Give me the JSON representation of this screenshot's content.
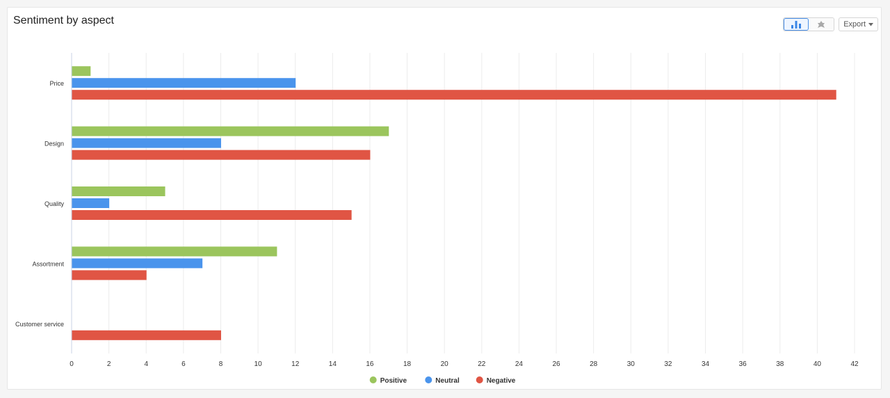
{
  "widget": {
    "title": "Sentiment by aspect",
    "export_label": "Export",
    "chart_type_options": [
      {
        "icon": "bar-chart-icon",
        "active": true
      },
      {
        "icon": "pie-chart-icon",
        "active": false
      }
    ]
  },
  "chart_data": {
    "type": "bar",
    "orientation": "horizontal",
    "categories": [
      "Price",
      "Design",
      "Quality",
      "Assortment",
      "Customer service"
    ],
    "series": [
      {
        "name": "Positive",
        "color": "#9bc55d",
        "values": [
          1,
          17,
          5,
          11,
          0
        ]
      },
      {
        "name": "Neutral",
        "color": "#4a94ec",
        "values": [
          12,
          8,
          2,
          7,
          0
        ]
      },
      {
        "name": "Negative",
        "color": "#e05544",
        "values": [
          41,
          16,
          15,
          4,
          8
        ]
      }
    ],
    "xlim": [
      0,
      42
    ],
    "xticks": [
      0,
      2,
      4,
      6,
      8,
      10,
      12,
      14,
      16,
      18,
      20,
      22,
      24,
      26,
      28,
      30,
      32,
      34,
      36,
      38,
      40,
      42
    ],
    "grid": true,
    "legend": "bottom-center",
    "title": "Sentiment by aspect"
  }
}
